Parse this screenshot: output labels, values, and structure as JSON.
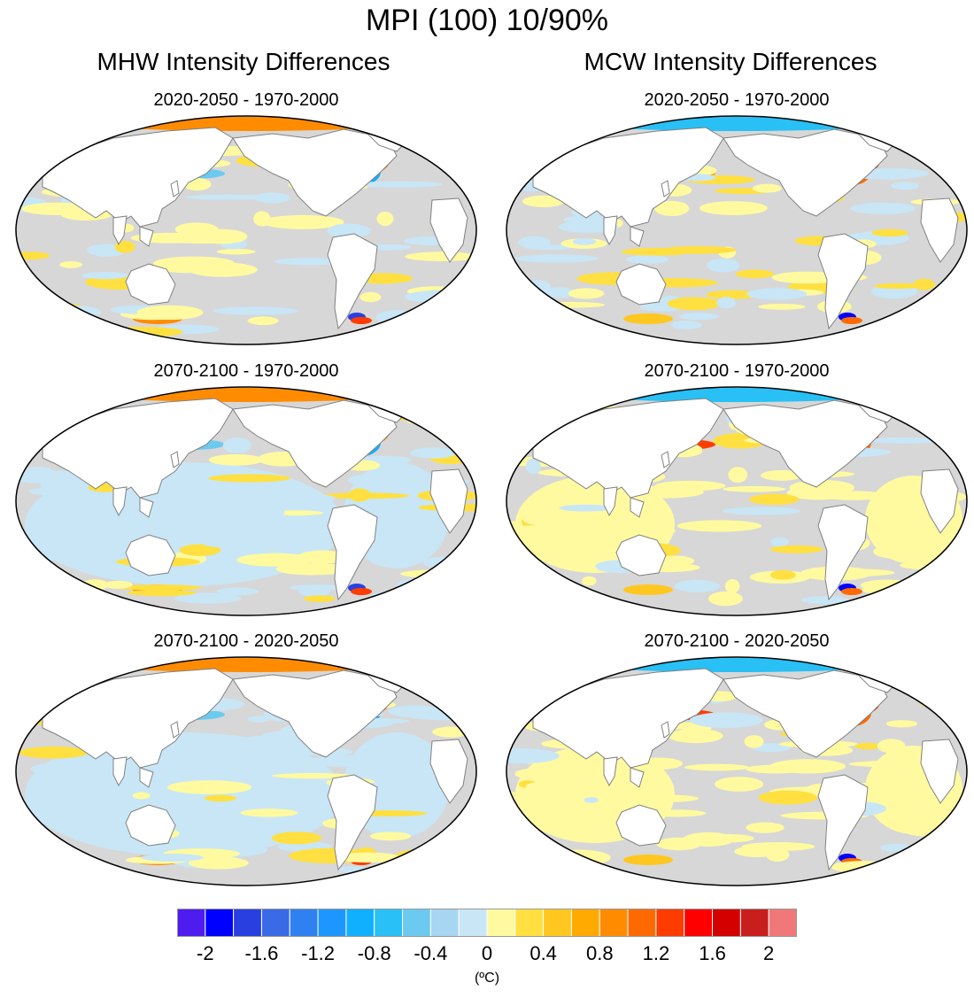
{
  "figure": {
    "title": "MPI (100) 10/90%",
    "left_column_title": "MHW Intensity Differences",
    "right_column_title": "MCW Intensity Differences"
  },
  "panels": [
    {
      "title": "2020-2050 - 1970-2000",
      "field": "MHW",
      "period": "mid_vs_hist"
    },
    {
      "title": "2020-2050 - 1970-2000",
      "field": "MCW",
      "period": "mid_vs_hist"
    },
    {
      "title": "2070-2100 - 1970-2000",
      "field": "MHW",
      "period": "end_vs_hist"
    },
    {
      "title": "2070-2100 - 1970-2000",
      "field": "MCW",
      "period": "end_vs_hist"
    },
    {
      "title": "2070-2100 - 2020-2050",
      "field": "MHW",
      "period": "end_vs_mid"
    },
    {
      "title": "2070-2100 - 2020-2050",
      "field": "MCW",
      "period": "end_vs_mid"
    }
  ],
  "colorbar": {
    "unit": "(ºC)",
    "tick_labels": [
      "-2",
      "-1.6",
      "-1.2",
      "-0.8",
      "-0.4",
      "0",
      "0.4",
      "0.8",
      "1.2",
      "1.6",
      "2"
    ],
    "tick_values": [
      -2,
      -1.6,
      -1.2,
      -0.8,
      -0.4,
      0,
      0.4,
      0.8,
      1.2,
      1.6,
      2
    ],
    "colors": [
      "#4f1cf0",
      "#0000ff",
      "#2a3fe0",
      "#3a6ae6",
      "#2f80f0",
      "#1e96ff",
      "#10b0ff",
      "#28c0f5",
      "#6ccaf0",
      "#a7d6f2",
      "#c8e6f6",
      "#fffaa0",
      "#ffe040",
      "#ffc720",
      "#ffaa00",
      "#ff8c00",
      "#ff6a00",
      "#ff3c00",
      "#ff0000",
      "#d40000",
      "#c81e1e",
      "#f07878"
    ],
    "neutral_color": "#d7d7d7",
    "land_color": "#ffffff",
    "coast_color": "#808080"
  }
}
